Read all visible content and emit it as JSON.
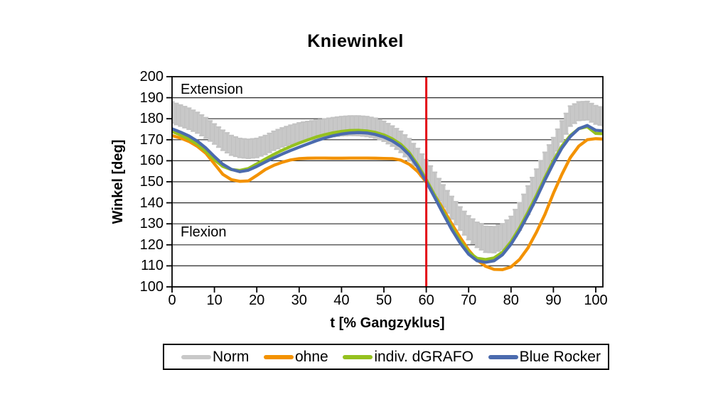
{
  "title": "Kniewinkel",
  "axes": {
    "y_label": "Winkel [deg]",
    "x_label": "t [% Gangzyklus]",
    "y_ticks": [
      200,
      190,
      180,
      170,
      160,
      150,
      140,
      130,
      120,
      110,
      100
    ],
    "x_ticks": [
      0,
      10,
      20,
      30,
      40,
      50,
      60,
      70,
      80,
      90,
      100
    ]
  },
  "annotations": {
    "upper": "Extension",
    "lower": "Flexion"
  },
  "reference_line": {
    "x": 60,
    "color": "#e30613"
  },
  "colors": {
    "norm": "#c8c8c8",
    "ohne": "#f39200",
    "dgrafo": "#95c11f",
    "blue_rocker": "#4b6bae",
    "grid": "#2b2b2b",
    "frame": "#000000"
  },
  "chart_data": {
    "type": "line",
    "title": "Kniewinkel",
    "xlabel": "t [% Gangzyklus]",
    "ylabel": "Winkel [deg]",
    "xlim": [
      0,
      100
    ],
    "ylim": [
      100,
      200
    ],
    "grid": "horizontal",
    "legend_position": "bottom",
    "x": [
      0,
      2,
      4,
      6,
      8,
      10,
      12,
      14,
      16,
      18,
      20,
      22,
      24,
      26,
      28,
      30,
      32,
      34,
      36,
      38,
      40,
      42,
      44,
      46,
      48,
      50,
      52,
      54,
      56,
      58,
      60,
      62,
      64,
      66,
      68,
      70,
      72,
      74,
      76,
      78,
      80,
      82,
      84,
      86,
      88,
      90,
      92,
      94,
      96,
      98,
      100,
      102
    ],
    "series": [
      {
        "name": "Norm",
        "type": "band",
        "color": "#c8c8c8",
        "upper": [
          188,
          186.5,
          185,
          183,
          180.5,
          177.5,
          174.5,
          172,
          170.6,
          170.2,
          170.6,
          172,
          174,
          175.6,
          176.9,
          178,
          178.7,
          179.3,
          179.9,
          180.5,
          181,
          181.3,
          181.3,
          181,
          180.2,
          178.8,
          176.5,
          174,
          170.5,
          165.8,
          160.5,
          154.5,
          148.5,
          143,
          138,
          133.8,
          130.7,
          128.8,
          128.6,
          130,
          133.5,
          140,
          148,
          156,
          164,
          171,
          179,
          186,
          188,
          188.2,
          186.2,
          185
        ],
        "lower": [
          178,
          176.5,
          175,
          173.2,
          170.8,
          168,
          165,
          162.7,
          161.6,
          161.2,
          161.6,
          163,
          165,
          166.6,
          167.9,
          169,
          169.8,
          170.4,
          171,
          171.5,
          171.9,
          172.1,
          172,
          171.6,
          170.8,
          169.3,
          167,
          164,
          160,
          155.3,
          150,
          144,
          138,
          132.3,
          127,
          122.5,
          118.8,
          116.5,
          116.3,
          117.8,
          121,
          127,
          134.5,
          143,
          152,
          160.5,
          169,
          176.5,
          179.2,
          179.5,
          177.5,
          176.5
        ]
      },
      {
        "name": "ohne",
        "type": "line",
        "color": "#f39200",
        "values": [
          172,
          170.8,
          169.2,
          166.8,
          163.5,
          158.5,
          153.5,
          151,
          150.2,
          150.4,
          153,
          155.8,
          157.8,
          159.3,
          160.4,
          161,
          161.2,
          161.3,
          161.3,
          161.2,
          161.2,
          161.3,
          161.3,
          161.3,
          161.2,
          161.1,
          161,
          160.3,
          158.3,
          154.8,
          149.8,
          143.5,
          137,
          130,
          123.5,
          117.5,
          112.8,
          109.8,
          108.3,
          108.2,
          109.5,
          113,
          118.5,
          126,
          134.5,
          144.5,
          153.5,
          161.5,
          167,
          170,
          170.5,
          170.3
        ]
      },
      {
        "name": "indiv. dGRAFO",
        "type": "line",
        "color": "#95c11f",
        "values": [
          174,
          172.3,
          170.3,
          167.8,
          164.5,
          160.5,
          157.3,
          155.8,
          155.4,
          156.3,
          158.5,
          160.8,
          163,
          165,
          166.8,
          168.4,
          169.9,
          171.3,
          172.4,
          173.3,
          174,
          174.4,
          174.5,
          174.2,
          173.5,
          172.3,
          170.4,
          167.8,
          163.8,
          158,
          151,
          143.5,
          135.8,
          128.3,
          121.8,
          116.5,
          113.6,
          113,
          113.8,
          116.5,
          121.5,
          128,
          135.5,
          143.5,
          152,
          160,
          167,
          172,
          175.3,
          176.2,
          173,
          172.8
        ]
      },
      {
        "name": "Blue Rocker",
        "type": "line",
        "color": "#4b6bae",
        "values": [
          175.2,
          173.6,
          171.8,
          169.3,
          166,
          162,
          158.3,
          155.9,
          154.8,
          155.5,
          157.3,
          159.4,
          161.4,
          163.2,
          164.9,
          166.5,
          168,
          169.5,
          170.8,
          171.9,
          172.7,
          173.2,
          173.4,
          173.2,
          172.5,
          171.3,
          169.4,
          166.8,
          162.8,
          157,
          150,
          142.5,
          134.8,
          127.3,
          120.8,
          115.5,
          112.4,
          111.7,
          112.4,
          115.3,
          120.3,
          126.8,
          134.2,
          142.2,
          150.8,
          158.8,
          166,
          171.5,
          175.3,
          176.8,
          174.5,
          174.2
        ]
      }
    ]
  }
}
